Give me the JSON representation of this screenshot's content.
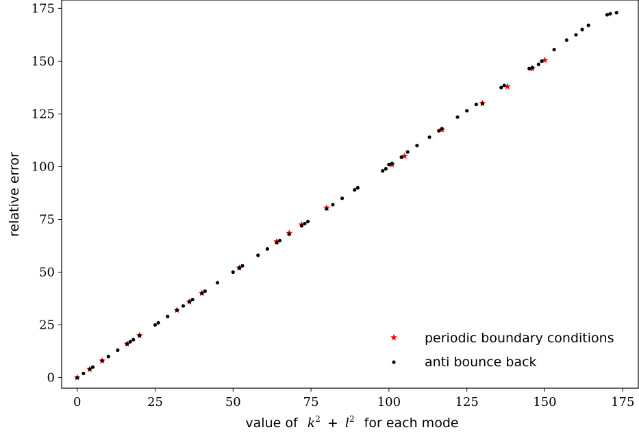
{
  "chart_data": {
    "type": "scatter",
    "title": "",
    "xlabel_parts": {
      "prefix": "value of",
      "math_k": "k",
      "math_plus": "+",
      "math_l": "l",
      "exponent": "2",
      "suffix": "for each mode"
    },
    "ylabel": "relative error",
    "xlim": [
      -5,
      180
    ],
    "ylim": [
      -5,
      179
    ],
    "xticks": [
      0,
      25,
      50,
      75,
      100,
      125,
      150,
      175
    ],
    "yticks": [
      0,
      25,
      50,
      75,
      100,
      125,
      150,
      175
    ],
    "grid": false,
    "legend_position": "lower-right",
    "series": [
      {
        "name": "periodic boundary conditions",
        "marker": "star",
        "color": "#ff0000",
        "x": [
          0,
          4,
          8,
          16,
          20,
          32,
          36,
          40,
          52,
          64,
          68,
          72,
          80,
          101,
          105,
          117,
          130,
          138,
          146,
          150
        ],
        "y": [
          0,
          4,
          8,
          16,
          20,
          32,
          36,
          40,
          52,
          64.5,
          68.5,
          72.5,
          80.5,
          101,
          105,
          117.5,
          130,
          138,
          146.5,
          150.5
        ]
      },
      {
        "name": "anti bounce back",
        "marker": "dot",
        "color": "#000000",
        "x": [
          0,
          2,
          4,
          5,
          8,
          10,
          13,
          16,
          17,
          18,
          20,
          25,
          26,
          29,
          32,
          34,
          36,
          37,
          40,
          41,
          45,
          50,
          52,
          53,
          58,
          61,
          64,
          65,
          68,
          72,
          73,
          74,
          80,
          82,
          85,
          89,
          90,
          98,
          99,
          100,
          101,
          104,
          106,
          109,
          113,
          116,
          117,
          122,
          125,
          128,
          130,
          136,
          137,
          145,
          146,
          148,
          149,
          153,
          157,
          160,
          162,
          164,
          170,
          171,
          173
        ],
        "y": [
          0,
          2,
          4,
          5,
          8,
          10,
          13,
          16,
          17,
          18,
          20,
          25,
          26,
          29,
          32,
          34,
          36,
          37,
          40,
          41,
          45,
          50,
          52,
          53,
          58,
          61,
          64,
          65,
          68,
          72,
          73,
          74,
          80,
          82,
          85,
          89,
          90,
          98,
          99,
          101,
          101.5,
          104.5,
          107,
          110,
          114,
          117,
          118,
          123.5,
          126.5,
          129.5,
          130,
          137.5,
          138.5,
          146.5,
          147,
          148.5,
          150,
          155.5,
          160,
          162.5,
          165,
          167,
          172,
          172.5,
          173
        ]
      }
    ]
  }
}
